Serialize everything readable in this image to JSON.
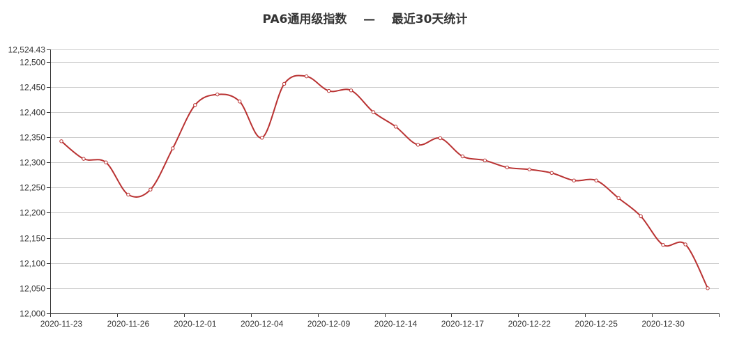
{
  "chart_data": {
    "type": "line",
    "title": "PA6通用级指数    —    最近30天统计",
    "xlabel": "",
    "ylabel": "",
    "ylim": [
      12000,
      12524.43
    ],
    "y_ticks": [
      "12,000",
      "12,050",
      "12,100",
      "12,150",
      "12,200",
      "12,250",
      "12,300",
      "12,350",
      "12,400",
      "12,450",
      "12,500",
      "12,524.43"
    ],
    "x_tick_labels": [
      "2020-11-23",
      "2020-11-26",
      "2020-12-01",
      "2020-12-04",
      "2020-12-09",
      "2020-12-14",
      "2020-12-17",
      "2020-12-22",
      "2020-12-25",
      "2020-12-30"
    ],
    "grid": true,
    "legend": "none",
    "smooth": true,
    "line_color": "#b93232",
    "series": [
      {
        "values": [
          12342,
          12307,
          12300,
          12236,
          12246,
          12328,
          12414,
          12435,
          12421,
          12349,
          12456,
          12471,
          12442,
          12443,
          12400,
          12371,
          12335,
          12348,
          12312,
          12304,
          12290,
          12286,
          12279,
          12264,
          12264,
          12229,
          12193,
          12136,
          12137,
          12050
        ]
      }
    ]
  }
}
